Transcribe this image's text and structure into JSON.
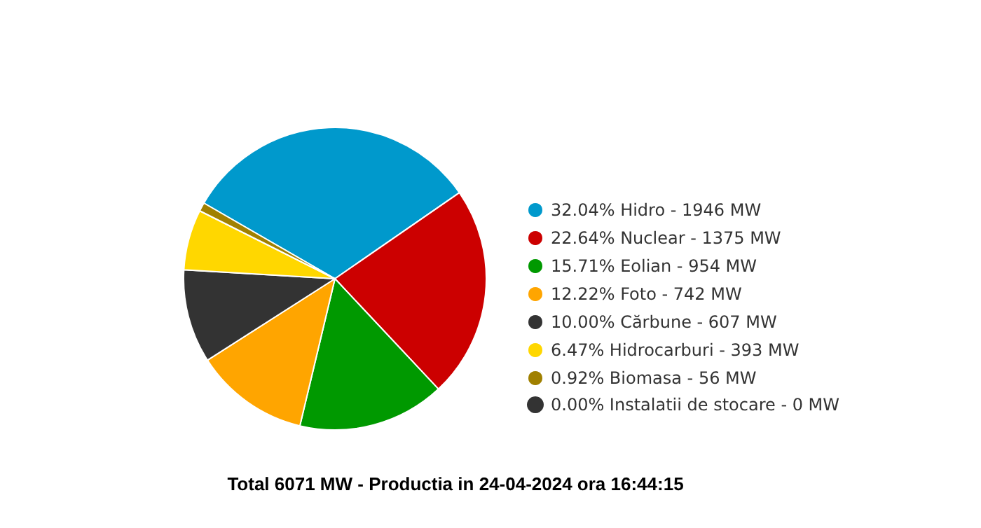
{
  "chart_data": {
    "type": "pie",
    "title": "Total 6071 MW - Productia in 24-04-2024 ora 16:44:15",
    "categories": [
      "32.04% Hidro - 1946 MW",
      "22.64% Nuclear - 1375 MW",
      "15.71% Eolian - 954 MW",
      "12.22% Foto - 742 MW",
      "10.00% Cărbune - 607 MW",
      "6.47% Hidrocarburi - 393 MW",
      "0.92% Biomasa - 56 MW",
      "0.00% Instalatii de stocare - 0 MW"
    ],
    "values": [
      32.04,
      22.64,
      15.71,
      12.22,
      10.0,
      6.47,
      0.92,
      0.0
    ],
    "colors": [
      "#0099cc",
      "#cc0000",
      "#009900",
      "#ffa500",
      "#333333",
      "#ffd700",
      "#a08000",
      "#333333"
    ],
    "legend": "right"
  }
}
